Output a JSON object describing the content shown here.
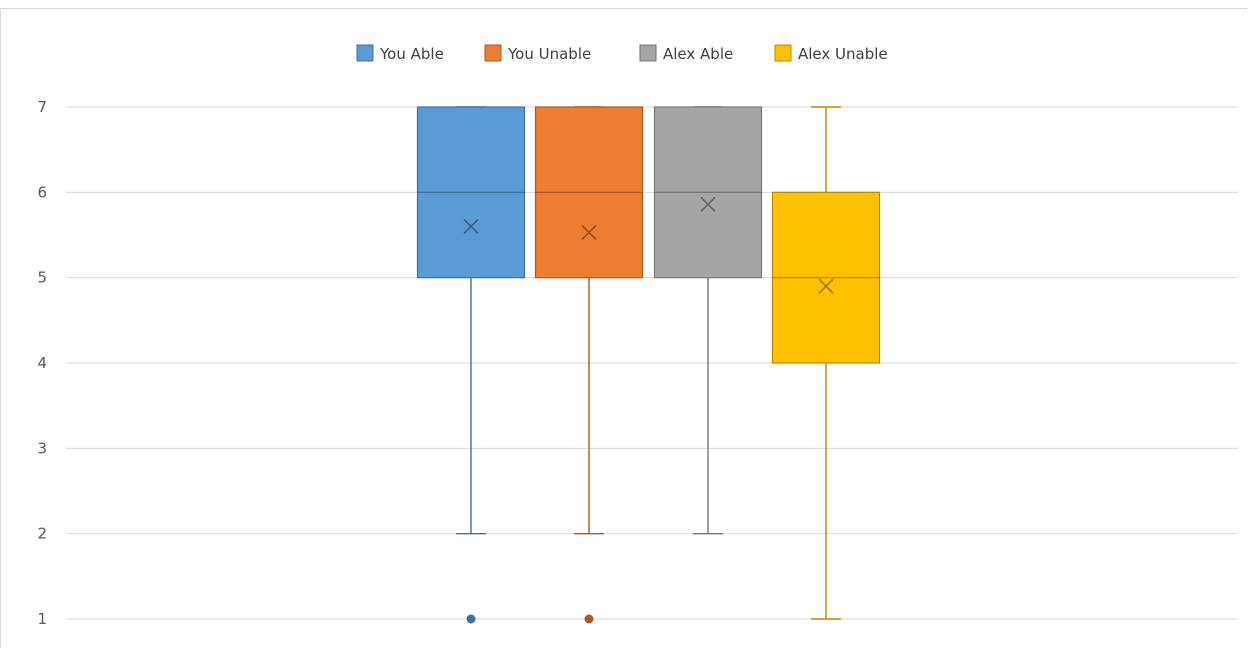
{
  "chart_data": {
    "type": "box",
    "title": "",
    "xlabel": "",
    "ylabel": "",
    "ylim": [
      1,
      7
    ],
    "yticks": [
      1,
      2,
      3,
      4,
      5,
      6,
      7
    ],
    "grid": true,
    "legend_position": "top",
    "series": [
      {
        "name": "You Able",
        "color": "#5b9bd5",
        "min": 2,
        "q1": 5,
        "median": 6,
        "q3": 7,
        "max": 7,
        "mean": 5.6,
        "outliers": [
          1
        ]
      },
      {
        "name": "You Unable",
        "color": "#ed7d31",
        "min": 2,
        "q1": 5,
        "median": 6,
        "q3": 7,
        "max": 7,
        "mean": 5.53,
        "outliers": [
          1
        ]
      },
      {
        "name": "Alex Able",
        "color": "#a5a5a5",
        "min": 2,
        "q1": 5,
        "median": 6,
        "q3": 7,
        "max": 7,
        "mean": 5.86,
        "outliers": []
      },
      {
        "name": "Alex Unable",
        "color": "#ffc000",
        "min": 1,
        "q1": 4,
        "median": 5,
        "q3": 6,
        "max": 7,
        "mean": 4.9,
        "outliers": []
      }
    ]
  }
}
